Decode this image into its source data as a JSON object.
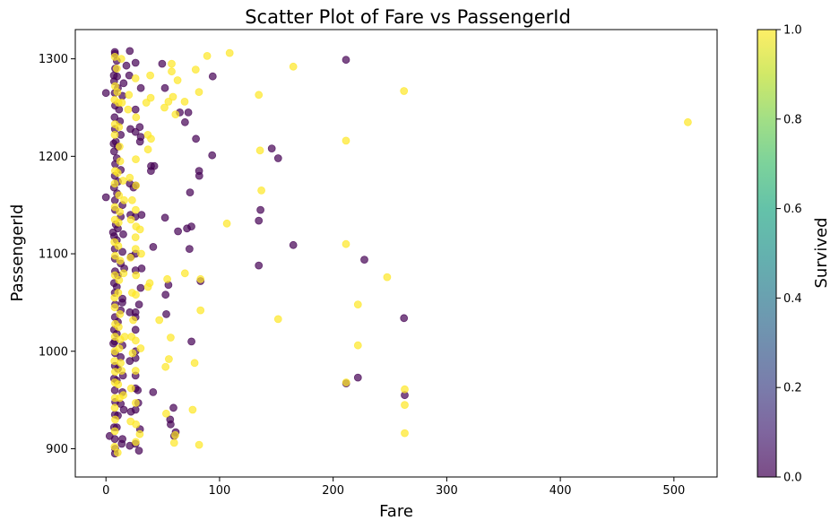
{
  "chart_data": {
    "type": "scatter",
    "title": "Scatter Plot of Fare vs PassengerId",
    "xlabel": "Fare",
    "ylabel": "PassengerId",
    "xlim": [
      -27,
      538
    ],
    "ylim": [
      871,
      1330
    ],
    "xticks": [
      0,
      100,
      200,
      300,
      400,
      500
    ],
    "yticks": [
      900,
      1000,
      1100,
      1200,
      1300
    ],
    "x_tick_labels": [
      "0",
      "100",
      "200",
      "300",
      "400",
      "500"
    ],
    "y_tick_labels": [
      "900",
      "1000",
      "1100",
      "1200",
      "1300"
    ],
    "grid": false,
    "legend": "none",
    "marker_alpha": 0.7,
    "colorbar": {
      "label": "Survived",
      "range": [
        0.0,
        1.0
      ],
      "ticks": [
        0.0,
        0.2,
        0.4,
        0.6,
        0.8,
        1.0
      ],
      "tick_labels": [
        "0.0",
        "0.2",
        "0.4",
        "0.6",
        "0.8",
        "1.0"
      ],
      "colormap": "viridis",
      "colors": [
        "#440154",
        "#482475",
        "#414487",
        "#355f8d",
        "#2a788e",
        "#21918c",
        "#22a884",
        "#44bf70",
        "#7ad151",
        "#bddf26",
        "#fde725"
      ]
    },
    "series": [
      {
        "survived": 0,
        "color": "#440154",
        "points": [
          [
            7.8,
            1307
          ],
          [
            7.9,
            1305
          ],
          [
            8.1,
            1290
          ],
          [
            7.2,
            1277
          ],
          [
            7.7,
            1265
          ],
          [
            8.0,
            1252
          ],
          [
            7.6,
            1240
          ],
          [
            7.9,
            1228
          ],
          [
            8.7,
            1215
          ],
          [
            7.2,
            1205
          ],
          [
            8.1,
            1192
          ],
          [
            7.8,
            1180
          ],
          [
            7.2,
            1168
          ],
          [
            7.9,
            1155
          ],
          [
            8.0,
            1145
          ],
          [
            8.7,
            1130
          ],
          [
            7.2,
            1118
          ],
          [
            7.8,
            1105
          ],
          [
            7.9,
            1095
          ],
          [
            8.0,
            1082
          ],
          [
            7.2,
            1070
          ],
          [
            7.8,
            1060
          ],
          [
            8.1,
            1048
          ],
          [
            7.9,
            1035
          ],
          [
            7.2,
            1022
          ],
          [
            7.8,
            1010
          ],
          [
            8.0,
            998
          ],
          [
            7.9,
            985
          ],
          [
            7.2,
            972
          ],
          [
            7.8,
            960
          ],
          [
            8.1,
            948
          ],
          [
            7.9,
            935
          ],
          [
            7.2,
            922
          ],
          [
            7.8,
            910
          ],
          [
            8.0,
            900
          ],
          [
            7.9,
            895
          ],
          [
            9.5,
            1298
          ],
          [
            9.8,
            1282
          ],
          [
            10.5,
            1270
          ],
          [
            11.5,
            1248
          ],
          [
            12.3,
            1236
          ],
          [
            13.0,
            1222
          ],
          [
            10.5,
            1210
          ],
          [
            9.5,
            1198
          ],
          [
            13.0,
            1186
          ],
          [
            10.5,
            1174
          ],
          [
            9.8,
            1162
          ],
          [
            14.5,
            1150
          ],
          [
            13.0,
            1138
          ],
          [
            10.5,
            1126
          ],
          [
            9.5,
            1114
          ],
          [
            14.5,
            1102
          ],
          [
            13.0,
            1090
          ],
          [
            10.5,
            1078
          ],
          [
            9.5,
            1066
          ],
          [
            14.5,
            1054
          ],
          [
            13.0,
            1042
          ],
          [
            10.5,
            1030
          ],
          [
            9.5,
            1018
          ],
          [
            14.5,
            1006
          ],
          [
            13.0,
            994
          ],
          [
            10.5,
            982
          ],
          [
            9.5,
            970
          ],
          [
            14.5,
            958
          ],
          [
            13.0,
            946
          ],
          [
            10.5,
            934
          ],
          [
            9.5,
            922
          ],
          [
            14.5,
            910
          ],
          [
            15.5,
            1275
          ],
          [
            14.5,
            1262
          ],
          [
            15.2,
            1120
          ],
          [
            16.1,
            1085
          ],
          [
            14.4,
            1050
          ],
          [
            15.0,
            975
          ],
          [
            15.7,
            940
          ],
          [
            13.9,
            905
          ],
          [
            0.0,
            1265
          ],
          [
            0.0,
            1158
          ],
          [
            3.2,
            913
          ],
          [
            6.5,
            1008
          ],
          [
            6.2,
            1122
          ],
          [
            6.8,
            1213
          ],
          [
            6.9,
            1283
          ],
          [
            18.0,
            1293
          ],
          [
            21.0,
            1308
          ],
          [
            20.5,
            1283
          ],
          [
            21.5,
            1228
          ],
          [
            21.0,
            1172
          ],
          [
            21.5,
            1140
          ],
          [
            22.0,
            1097
          ],
          [
            21.0,
            1040
          ],
          [
            21.0,
            990
          ],
          [
            22.0,
            938
          ],
          [
            21.0,
            903
          ],
          [
            24.2,
            1168
          ],
          [
            26.0,
            1296
          ],
          [
            26.0,
            1248
          ],
          [
            26.0,
            1225
          ],
          [
            26.0,
            1170
          ],
          [
            25.9,
            1138
          ],
          [
            26.0,
            1100
          ],
          [
            26.0,
            1083
          ],
          [
            26.0,
            1040
          ],
          [
            26.0,
            1035
          ],
          [
            26.0,
            1022
          ],
          [
            26.0,
            1000
          ],
          [
            26.0,
            993
          ],
          [
            26.0,
            975
          ],
          [
            26.0,
            962
          ],
          [
            26.0,
            940
          ],
          [
            26.0,
            905
          ],
          [
            28.0,
            960
          ],
          [
            29.0,
            898
          ],
          [
            29.7,
            1230
          ],
          [
            30.0,
            1215
          ],
          [
            30.7,
            1270
          ],
          [
            31.3,
            1140
          ],
          [
            31.4,
            1085
          ],
          [
            30.5,
            1065
          ],
          [
            29.1,
            1048
          ],
          [
            30.0,
            920
          ],
          [
            30.6,
            1220
          ],
          [
            28.5,
            947
          ],
          [
            41.6,
            1107
          ],
          [
            39.6,
            1185
          ],
          [
            39.7,
            1190
          ],
          [
            42.5,
            1190
          ],
          [
            41.5,
            958
          ],
          [
            49.5,
            1295
          ],
          [
            51.9,
            1270
          ],
          [
            52.0,
            1137
          ],
          [
            52.5,
            1058
          ],
          [
            53.1,
            1038
          ],
          [
            55.0,
            1068
          ],
          [
            56.5,
            930
          ],
          [
            57.0,
            925
          ],
          [
            59.4,
            942
          ],
          [
            60.0,
            913
          ],
          [
            61.4,
            917
          ],
          [
            63.4,
            1123
          ],
          [
            65.0,
            1245
          ],
          [
            69.6,
            1235
          ],
          [
            71.3,
            1126
          ],
          [
            72.5,
            1245
          ],
          [
            73.5,
            1105
          ],
          [
            74.0,
            1163
          ],
          [
            75.2,
            1128
          ],
          [
            75.3,
            1010
          ],
          [
            79.2,
            1218
          ],
          [
            82.0,
            1185
          ],
          [
            82.1,
            1180
          ],
          [
            83.2,
            1072
          ],
          [
            93.5,
            1201
          ],
          [
            94.0,
            1282
          ],
          [
            134.5,
            1134
          ],
          [
            134.5,
            1088
          ],
          [
            136.0,
            1145
          ],
          [
            146.0,
            1208
          ],
          [
            151.6,
            1198
          ],
          [
            164.9,
            1109
          ],
          [
            211.3,
            1299
          ],
          [
            211.5,
            967
          ],
          [
            221.8,
            973
          ],
          [
            227.5,
            1094
          ],
          [
            262.4,
            1034
          ],
          [
            263.0,
            955
          ]
        ]
      },
      {
        "survived": 1,
        "color": "#fde725",
        "points": [
          [
            7.8,
            1302
          ],
          [
            8.0,
            1272
          ],
          [
            7.6,
            1258
          ],
          [
            7.9,
            1233
          ],
          [
            7.7,
            1222
          ],
          [
            8.0,
            1185
          ],
          [
            7.7,
            1172
          ],
          [
            7.8,
            1148
          ],
          [
            7.9,
            1135
          ],
          [
            7.5,
            1112
          ],
          [
            8.0,
            1098
          ],
          [
            7.9,
            1078
          ],
          [
            7.6,
            1055
          ],
          [
            7.7,
            1045
          ],
          [
            8.1,
            1028
          ],
          [
            7.9,
            1015
          ],
          [
            7.7,
            1000
          ],
          [
            7.5,
            990
          ],
          [
            8.0,
            979
          ],
          [
            7.8,
            968
          ],
          [
            7.9,
            952
          ],
          [
            7.7,
            942
          ],
          [
            8.1,
            930
          ],
          [
            7.8,
            918
          ],
          [
            7.6,
            902
          ],
          [
            9.5,
            1290
          ],
          [
            10.0,
            1266
          ],
          [
            11.0,
            1255
          ],
          [
            11.5,
            1230
          ],
          [
            12.0,
            1210
          ],
          [
            12.5,
            1195
          ],
          [
            10.3,
            1183
          ],
          [
            11.4,
            1160
          ],
          [
            12.2,
            1143
          ],
          [
            11.1,
            1132
          ],
          [
            10.9,
            1108
          ],
          [
            12.5,
            1093
          ],
          [
            11.6,
            1073
          ],
          [
            10.8,
            1060
          ],
          [
            12.3,
            1038
          ],
          [
            11.2,
            1025
          ],
          [
            12.7,
            1012
          ],
          [
            11.7,
            1003
          ],
          [
            12.9,
            988
          ],
          [
            10.7,
            966
          ],
          [
            12.1,
            952
          ],
          [
            10.3,
            896
          ],
          [
            13.5,
            1300
          ],
          [
            14.0,
            1255
          ],
          [
            15.0,
            1175
          ],
          [
            16.0,
            1155
          ],
          [
            15.5,
            1080
          ],
          [
            16.5,
            1015
          ],
          [
            13.8,
            980
          ],
          [
            15.3,
            955
          ],
          [
            19.5,
            1248
          ],
          [
            20.2,
            1263
          ],
          [
            21.0,
            1178
          ],
          [
            23.0,
            1155
          ],
          [
            22.0,
            1135
          ],
          [
            21.5,
            1096
          ],
          [
            23.0,
            1060
          ],
          [
            22.5,
            1015
          ],
          [
            23.5,
            998
          ],
          [
            22.2,
            962
          ],
          [
            21.7,
            928
          ],
          [
            24.0,
            1032
          ],
          [
            26.0,
            1280
          ],
          [
            26.5,
            1240
          ],
          [
            26.3,
            1197
          ],
          [
            26.4,
            1170
          ],
          [
            26.2,
            1145
          ],
          [
            26.5,
            1128
          ],
          [
            26.0,
            1117
          ],
          [
            26.1,
            1105
          ],
          [
            26.4,
            1078
          ],
          [
            26.3,
            1058
          ],
          [
            26.2,
            1011
          ],
          [
            26.1,
            980
          ],
          [
            26.2,
            947
          ],
          [
            26.4,
            925
          ],
          [
            26.3,
            907
          ],
          [
            30.0,
            1125
          ],
          [
            31.0,
            1100
          ],
          [
            30.5,
            1003
          ],
          [
            29.7,
            915
          ],
          [
            35.5,
            1255
          ],
          [
            36.8,
            1222
          ],
          [
            37.0,
            1207
          ],
          [
            38.5,
            1070
          ],
          [
            37.0,
            1066
          ],
          [
            39.0,
            1283
          ],
          [
            39.4,
            1260
          ],
          [
            39.7,
            1218
          ],
          [
            46.9,
            1032
          ],
          [
            51.5,
            1250
          ],
          [
            52.5,
            984
          ],
          [
            53.0,
            936
          ],
          [
            54.0,
            1074
          ],
          [
            55.0,
            1256
          ],
          [
            55.4,
            992
          ],
          [
            57.0,
            1014
          ],
          [
            57.8,
            1295
          ],
          [
            57.8,
            1287
          ],
          [
            59.0,
            1261
          ],
          [
            60.0,
            906
          ],
          [
            61.0,
            914
          ],
          [
            61.2,
            1243
          ],
          [
            63.0,
            1278
          ],
          [
            69.3,
            1256
          ],
          [
            69.5,
            1080
          ],
          [
            76.3,
            940
          ],
          [
            78.0,
            988
          ],
          [
            79.0,
            1289
          ],
          [
            81.9,
            1266
          ],
          [
            82.0,
            904
          ],
          [
            83.2,
            1074
          ],
          [
            83.2,
            1042
          ],
          [
            89.1,
            1303
          ],
          [
            108.9,
            1306
          ],
          [
            106.4,
            1131
          ],
          [
            134.5,
            1263
          ],
          [
            135.6,
            1206
          ],
          [
            136.8,
            1165
          ],
          [
            151.6,
            1033
          ],
          [
            164.9,
            1292
          ],
          [
            211.3,
            1216
          ],
          [
            211.3,
            1110
          ],
          [
            211.5,
            968
          ],
          [
            221.8,
            1048
          ],
          [
            221.8,
            1006
          ],
          [
            247.5,
            1076
          ],
          [
            262.4,
            1267
          ],
          [
            263.0,
            961
          ],
          [
            263.0,
            945
          ],
          [
            263.0,
            916
          ],
          [
            512.3,
            1235
          ]
        ]
      }
    ]
  }
}
